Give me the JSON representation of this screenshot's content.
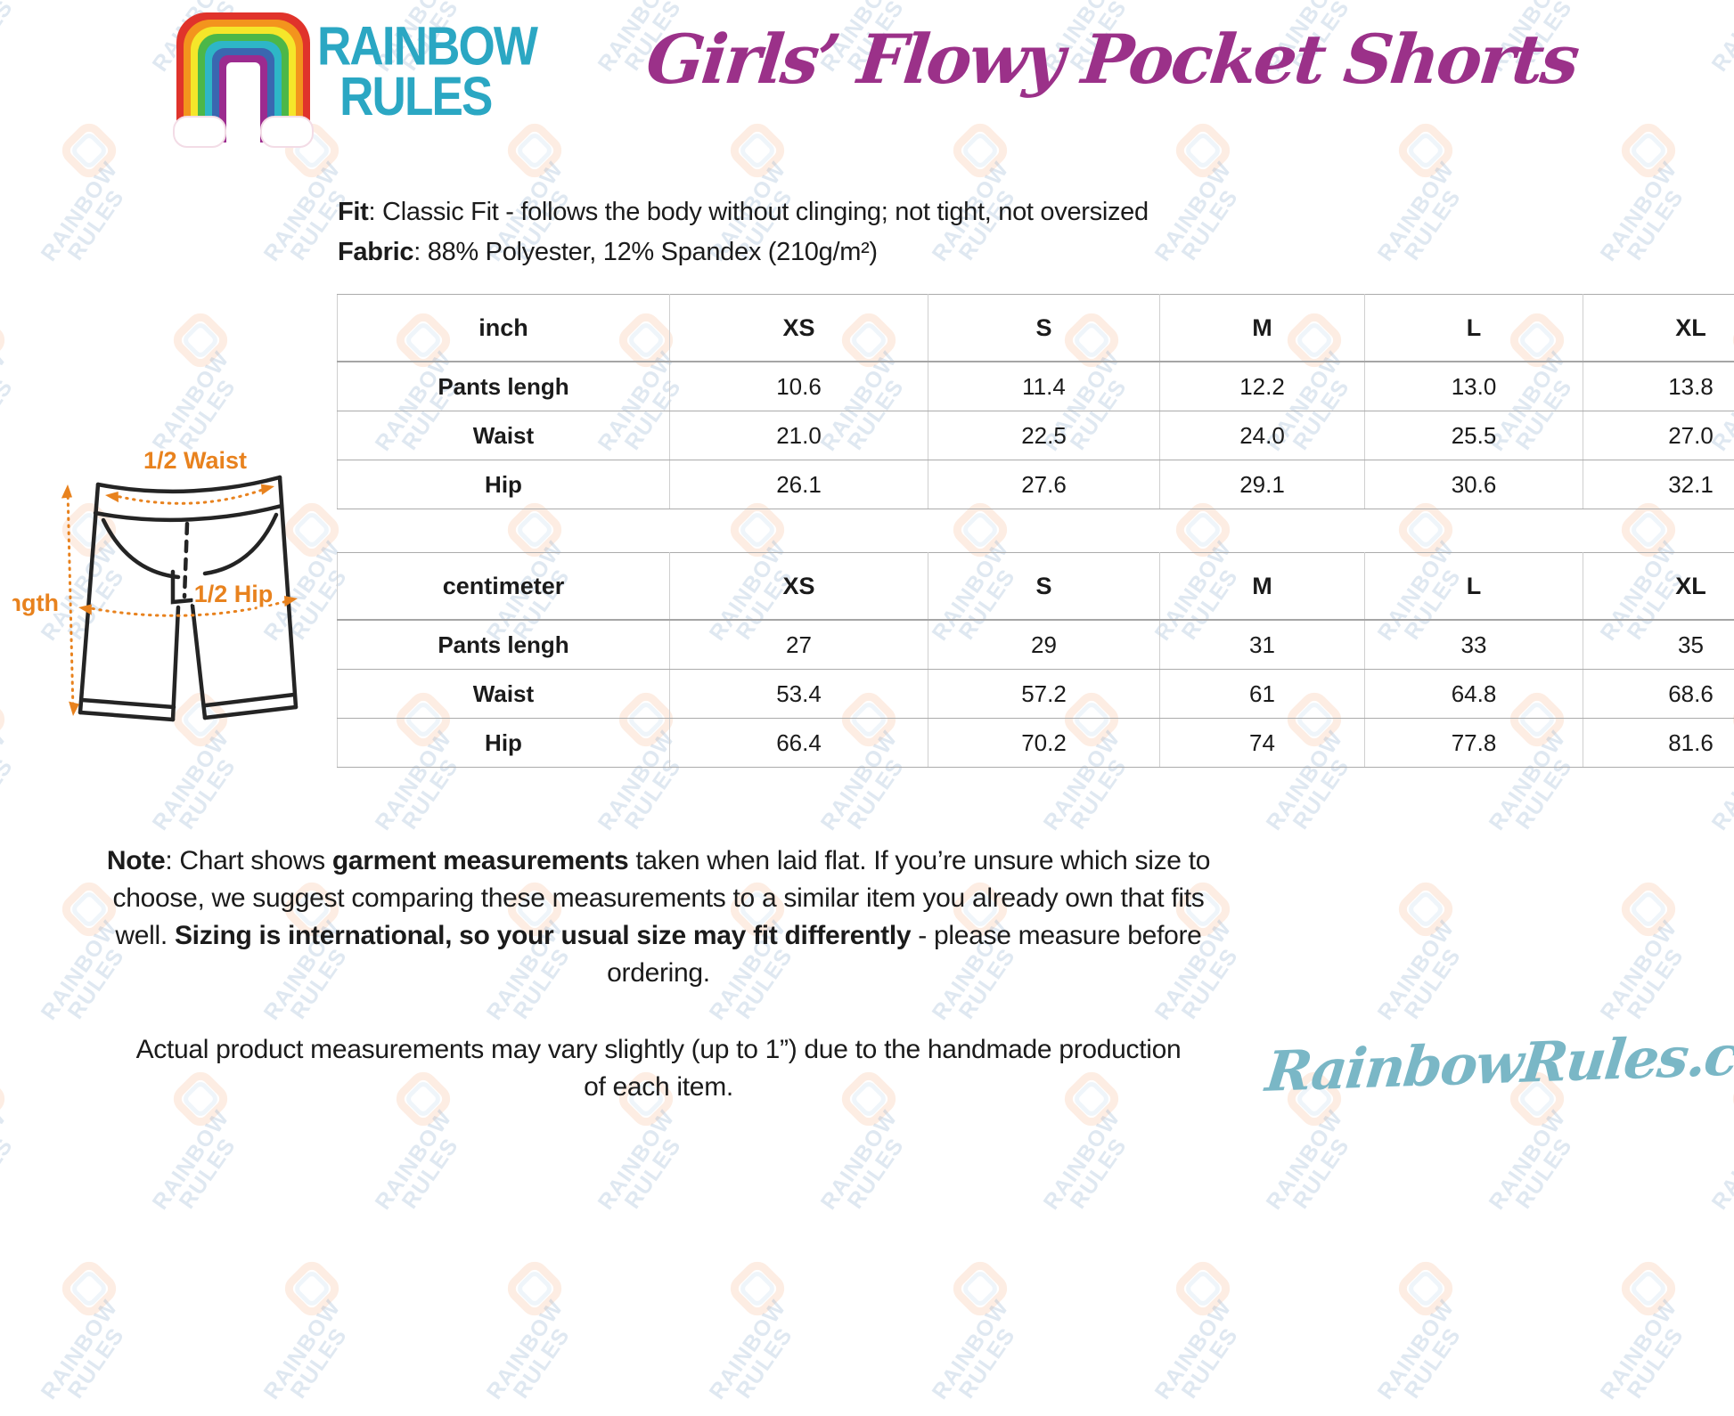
{
  "brand": {
    "name_line1": "RAINBOW",
    "name_line2": "RULES",
    "watermark_line1": "RAINBOW",
    "watermark_line2": "RULES",
    "website": "RainbowRules.com"
  },
  "header": {
    "title": "Girls’ Flowy Pocket Shorts"
  },
  "product": {
    "fit_label": "Fit",
    "fit_text": ": Classic Fit - follows the body without clinging; not tight, not oversized",
    "fabric_label": "Fabric",
    "fabric_text": ": 88% Polyester, 12% Spandex (210g/m²)"
  },
  "diagram": {
    "waist_label": "1/2 Waist",
    "length_label": "Length",
    "hip_label": "1/2 Hip"
  },
  "tables": [
    {
      "unit": "inch",
      "sizes": [
        "XS",
        "S",
        "M",
        "L",
        "XL"
      ],
      "rows": [
        {
          "label": "Pants lengh",
          "values": [
            "10.6",
            "11.4",
            "12.2",
            "13.0",
            "13.8"
          ]
        },
        {
          "label": "Waist",
          "values": [
            "21.0",
            "22.5",
            "24.0",
            "25.5",
            "27.0"
          ]
        },
        {
          "label": "Hip",
          "values": [
            "26.1",
            "27.6",
            "29.1",
            "30.6",
            "32.1"
          ]
        }
      ]
    },
    {
      "unit": "centimeter",
      "sizes": [
        "XS",
        "S",
        "M",
        "L",
        "XL"
      ],
      "rows": [
        {
          "label": "Pants lengh",
          "values": [
            "27",
            "29",
            "31",
            "33",
            "35"
          ]
        },
        {
          "label": "Waist",
          "values": [
            "53.4",
            "57.2",
            "61",
            "64.8",
            "68.6"
          ]
        },
        {
          "label": "Hip",
          "values": [
            "66.4",
            "70.2",
            "74",
            "77.8",
            "81.6"
          ]
        }
      ]
    }
  ],
  "note": {
    "bold1": "Note",
    "text1": ": Chart shows ",
    "bold2": "garment measurements",
    "text2": " taken when laid flat. If you’re unsure which size to choose, we suggest comparing these measurements to a similar item you already own that fits well. ",
    "bold3": "Sizing is international, so your usual size may fit differently",
    "text3": " - please measure before ordering."
  },
  "footer": {
    "note": "Actual product measurements may vary slightly (up to 1”) due to the handmade production of each item."
  },
  "colors": {
    "title_purple": "#9b3189",
    "brand_teal": "#2ba7c3",
    "website_teal": "#7ab7c6",
    "measure_orange": "#e8821e"
  }
}
